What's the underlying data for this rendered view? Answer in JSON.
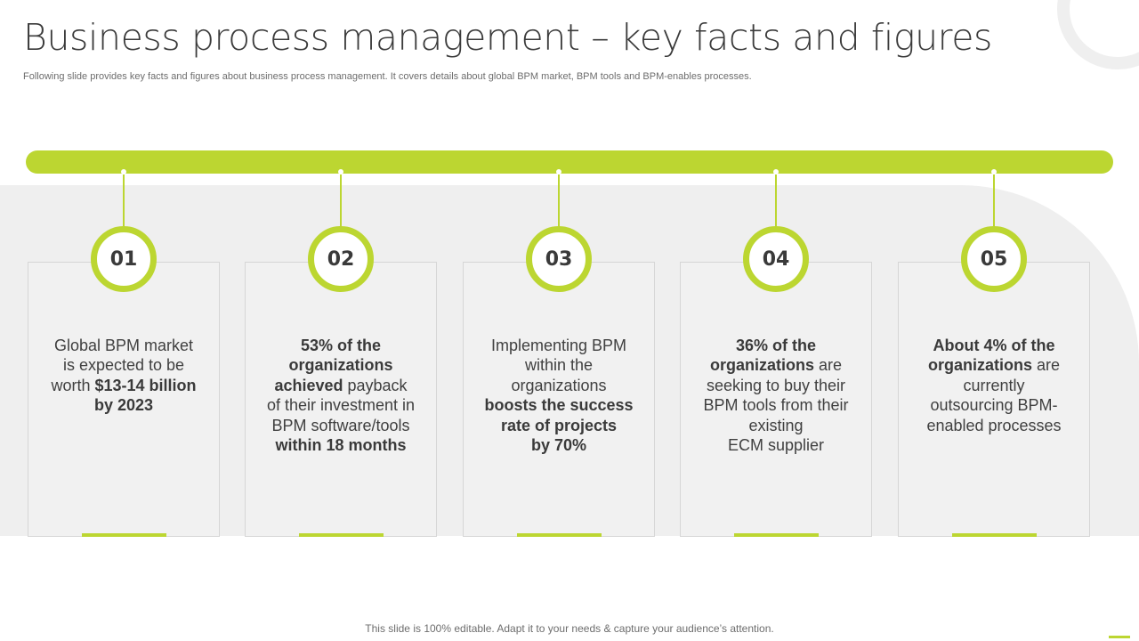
{
  "slide": {
    "title": "Business process management – key facts and figures",
    "subtitle": "Following slide provides key facts and figures about business process management. It covers details about global BPM market, BPM tools and BPM-enables processes.",
    "footer": "This slide is 100% editable. Adapt it to your needs & capture your audience’s attention."
  },
  "colors": {
    "accent": "#bcd631",
    "panel": "#efefef",
    "text": "#3b3b3b"
  },
  "facts": [
    {
      "number": "01",
      "lines": [
        [
          {
            "t": "Global BPM market",
            "b": false
          }
        ],
        [
          {
            "t": "is expected to be",
            "b": false
          }
        ],
        [
          {
            "t": "worth ",
            "b": false
          },
          {
            "t": "$13-14 billion",
            "b": true
          }
        ],
        [
          {
            "t": "by 2023",
            "b": true
          }
        ]
      ]
    },
    {
      "number": "02",
      "lines": [
        [
          {
            "t": "53% of the",
            "b": true
          }
        ],
        [
          {
            "t": "organizations",
            "b": true
          }
        ],
        [
          {
            "t": "achieved",
            "b": true
          },
          {
            "t": " payback",
            "b": false
          }
        ],
        [
          {
            "t": "of their investment in",
            "b": false
          }
        ],
        [
          {
            "t": "BPM software/tools",
            "b": false
          }
        ],
        [
          {
            "t": "within 18 months",
            "b": true
          }
        ]
      ]
    },
    {
      "number": "03",
      "lines": [
        [
          {
            "t": "Implementing BPM",
            "b": false
          }
        ],
        [
          {
            "t": "within the",
            "b": false
          }
        ],
        [
          {
            "t": "organizations",
            "b": false
          }
        ],
        [
          {
            "t": "boosts the success",
            "b": true
          }
        ],
        [
          {
            "t": "rate of projects",
            "b": true
          }
        ],
        [
          {
            "t": "by 70%",
            "b": true
          }
        ]
      ]
    },
    {
      "number": "04",
      "lines": [
        [
          {
            "t": "36% of the",
            "b": true
          }
        ],
        [
          {
            "t": "organizations",
            "b": true
          },
          {
            "t": " are",
            "b": false
          }
        ],
        [
          {
            "t": "seeking to buy their",
            "b": false
          }
        ],
        [
          {
            "t": "BPM tools from their",
            "b": false
          }
        ],
        [
          {
            "t": "existing",
            "b": false
          }
        ],
        [
          {
            "t": "ECM supplier",
            "b": false
          }
        ]
      ]
    },
    {
      "number": "05",
      "lines": [
        [
          {
            "t": "About 4% of the",
            "b": true
          }
        ],
        [
          {
            "t": "organizations",
            "b": true
          },
          {
            "t": " are",
            "b": false
          }
        ],
        [
          {
            "t": "currently",
            "b": false
          }
        ],
        [
          {
            "t": "outsourcing BPM-",
            "b": false
          }
        ],
        [
          {
            "t": "enabled processes",
            "b": false
          }
        ]
      ]
    }
  ]
}
